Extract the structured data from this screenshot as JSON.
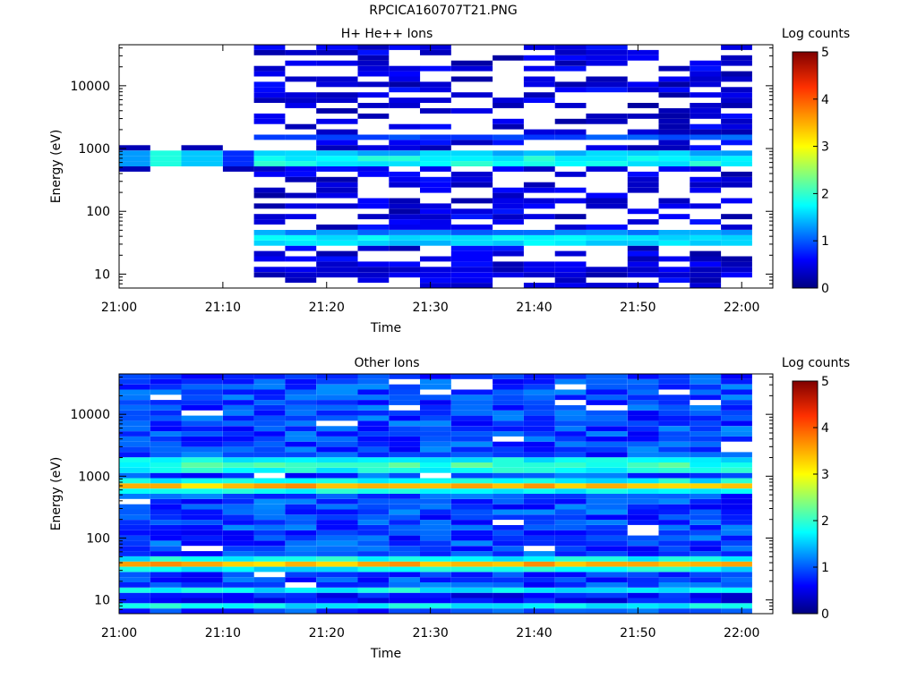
{
  "figure": {
    "title": "RPCICA160707T21.PNG"
  },
  "chart_data": [
    {
      "type": "heatmap",
      "title": "H+ He++ Ions",
      "xlabel": "Time",
      "ylabel": "Energy (eV)",
      "x_ticks": [
        "21:00",
        "21:10",
        "21:20",
        "21:30",
        "21:40",
        "21:50",
        "22:00"
      ],
      "y_scale": "log",
      "y_ticks": [
        "10",
        "100",
        "1000",
        "10000"
      ],
      "ylim": [
        6,
        45000
      ],
      "xlim": [
        "21:00",
        "22:03"
      ],
      "colorbar": {
        "label": "Log counts",
        "min": 0,
        "max": 5,
        "ticks": [
          "0",
          "1",
          "2",
          "3",
          "4",
          "5"
        ]
      },
      "time_bins": [
        "21:00",
        "21:03",
        "21:06",
        "21:10",
        "21:13",
        "21:16",
        "21:19",
        "21:23",
        "21:26",
        "21:29",
        "21:32",
        "21:36",
        "21:39",
        "21:42",
        "21:45",
        "21:49",
        "21:52",
        "21:55",
        "21:58"
      ],
      "data_start_bin": 4,
      "band_energies_eV": [
        10,
        35,
        45,
        650,
        750,
        1500
      ],
      "band_values_log_counts": [
        0.4,
        1.6,
        1.2,
        1.8,
        1.5,
        1.0
      ],
      "early_band_eV": 700,
      "early_band_values_log_counts": [
        1.3,
        1.9,
        1.5,
        0.8
      ]
    },
    {
      "type": "heatmap",
      "title": "Other Ions",
      "xlabel": "Time",
      "ylabel": "Energy (eV)",
      "x_ticks": [
        "21:00",
        "21:10",
        "21:20",
        "21:30",
        "21:40",
        "21:50",
        "22:00"
      ],
      "y_scale": "log",
      "y_ticks": [
        "10",
        "100",
        "1000",
        "10000"
      ],
      "ylim": [
        6,
        45000
      ],
      "xlim": [
        "21:00",
        "22:03"
      ],
      "colorbar": {
        "label": "Log counts",
        "min": 0,
        "max": 5,
        "ticks": [
          "0",
          "1",
          "2",
          "3",
          "4",
          "5"
        ]
      },
      "time_bins": [
        "21:00",
        "21:03",
        "21:06",
        "21:10",
        "21:13",
        "21:16",
        "21:19",
        "21:23",
        "21:26",
        "21:29",
        "21:32",
        "21:36",
        "21:39",
        "21:42",
        "21:45",
        "21:49",
        "21:52",
        "21:55",
        "21:58"
      ],
      "band_energies_eV": [
        10,
        38,
        700,
        1500
      ],
      "band_values_log_counts": [
        0.6,
        3.4,
        3.4,
        2.0
      ],
      "background_log_counts": 0.9
    }
  ]
}
